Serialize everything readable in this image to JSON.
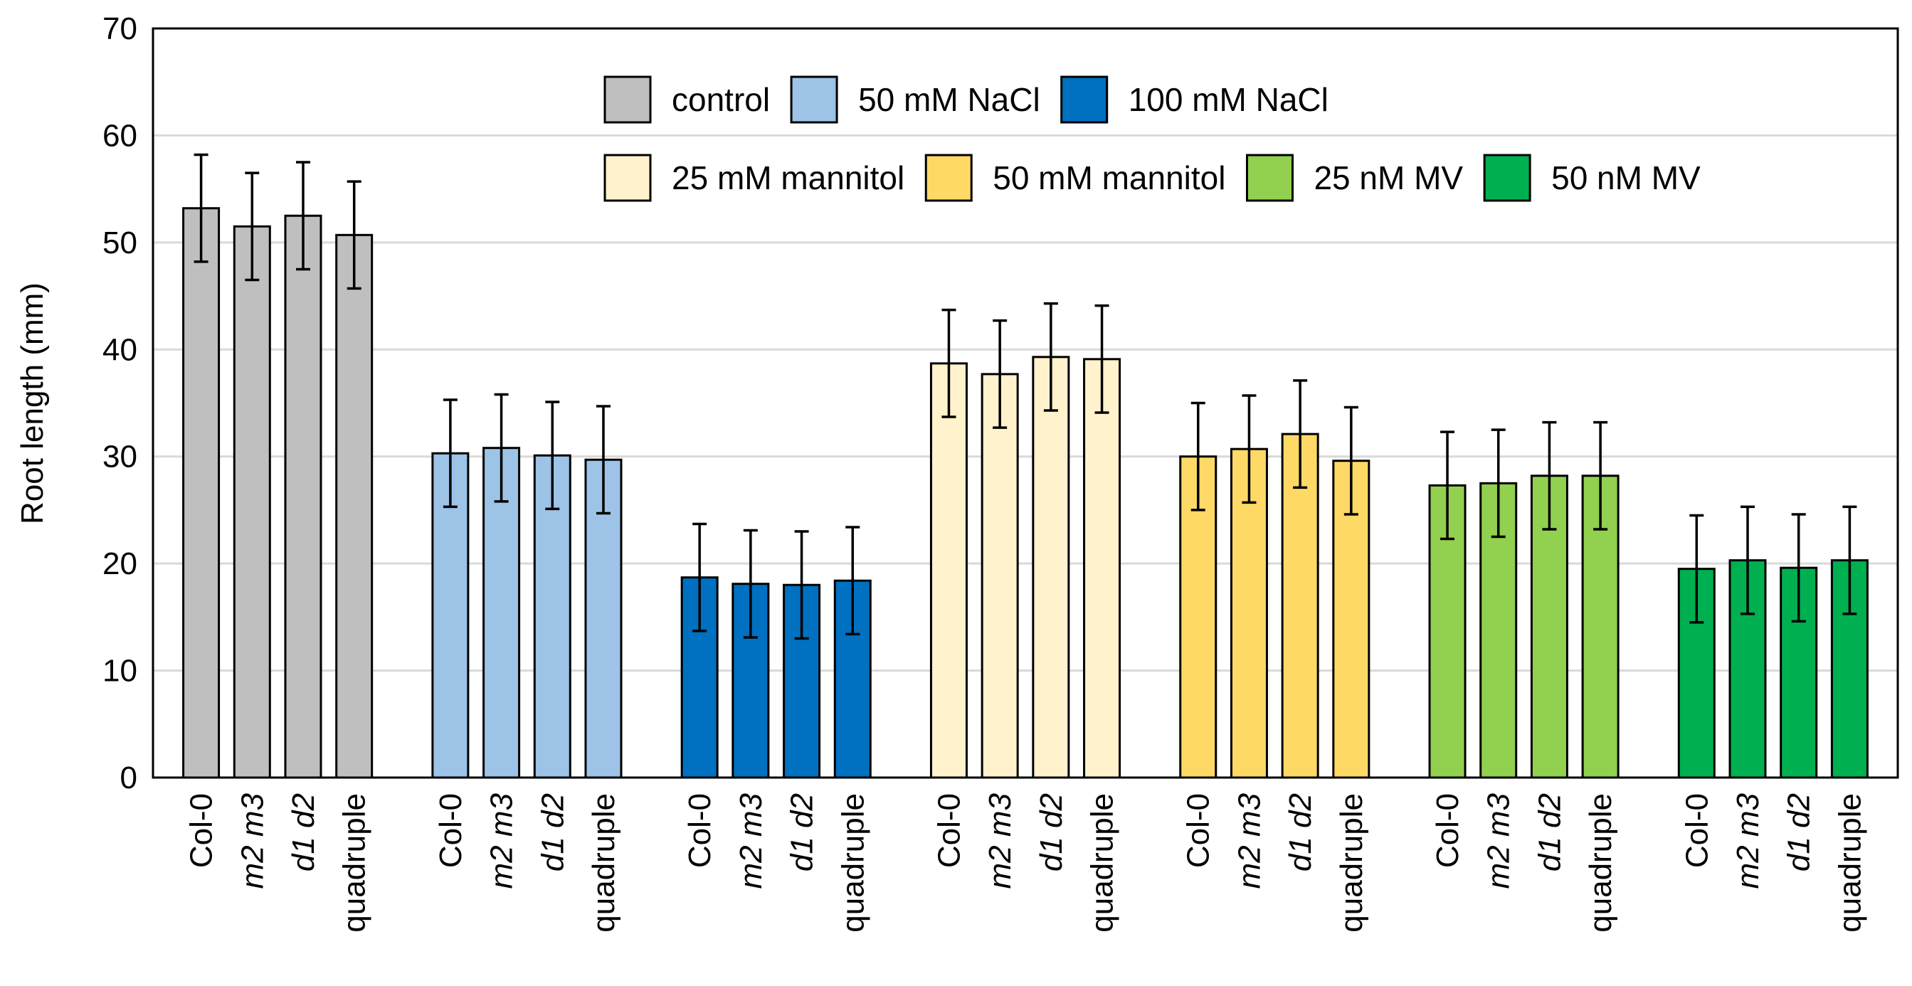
{
  "chart_data": {
    "type": "bar",
    "title": "",
    "xlabel": "",
    "ylabel": "Root length (mm)",
    "ylim": [
      0,
      70
    ],
    "yticks": [
      "0",
      "10",
      "20",
      "30",
      "40",
      "50",
      "60",
      "70"
    ],
    "grid": true,
    "legend_position": "top-right",
    "genotypes": [
      {
        "label": "Col-0",
        "italic": false
      },
      {
        "label": "m2 m3",
        "italic": true
      },
      {
        "label": "d1 d2",
        "italic": true
      },
      {
        "label": "quadruple",
        "italic": false
      }
    ],
    "series": [
      {
        "name": "control",
        "color": "#BFBFBF",
        "values": [
          53.2,
          51.5,
          52.5,
          50.7
        ],
        "errors": [
          5.0,
          5.0,
          5.0,
          5.0
        ]
      },
      {
        "name": "50 mM NaCl",
        "color": "#9DC3E6",
        "values": [
          30.3,
          30.8,
          30.1,
          29.7
        ],
        "errors": [
          5.0,
          5.0,
          5.0,
          5.0
        ]
      },
      {
        "name": "100 mM NaCl",
        "color": "#0070C0",
        "values": [
          18.7,
          18.1,
          18.0,
          18.4
        ],
        "errors": [
          5.0,
          5.0,
          5.0,
          5.0
        ]
      },
      {
        "name": "25 mM mannitol",
        "color": "#FFF2CC",
        "values": [
          38.7,
          37.7,
          39.3,
          39.1
        ],
        "errors": [
          5.0,
          5.0,
          5.0,
          5.0
        ]
      },
      {
        "name": "50 mM mannitol",
        "color": "#FFD966",
        "values": [
          30.0,
          30.7,
          32.1,
          29.6
        ],
        "errors": [
          5.0,
          5.0,
          5.0,
          5.0
        ]
      },
      {
        "name": "25 nM MV",
        "color": "#92D050",
        "values": [
          27.3,
          27.5,
          28.2,
          28.2
        ],
        "errors": [
          5.0,
          5.0,
          5.0,
          5.0
        ]
      },
      {
        "name": "50 nM MV",
        "color": "#00B050",
        "values": [
          19.5,
          20.3,
          19.6,
          20.3
        ],
        "errors": [
          5.0,
          5.0,
          5.0,
          5.0
        ]
      }
    ]
  }
}
